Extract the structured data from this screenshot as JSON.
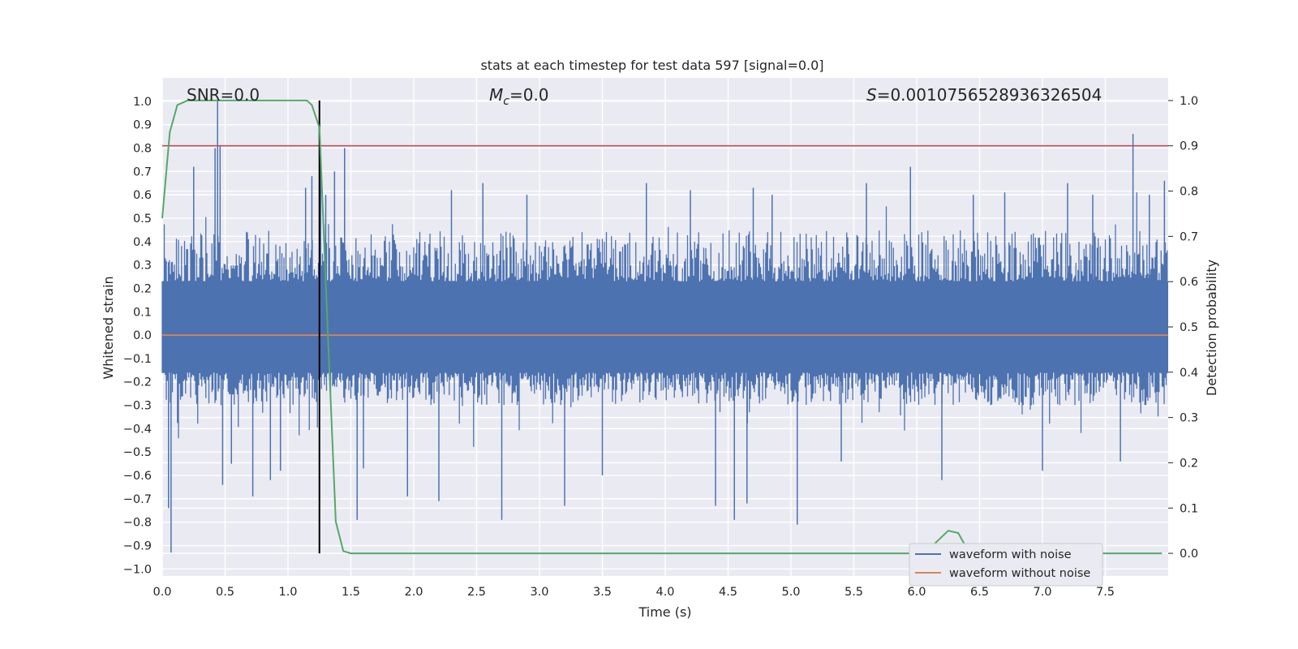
{
  "chart_data": {
    "type": "line",
    "title": "stats at each timestep for test data 597 [signal=0.0]",
    "xlabel": "Time (s)",
    "ylabel": "Whitened strain",
    "y2label": "Detection probability",
    "xlim": [
      0.0,
      8.0
    ],
    "ylim": [
      -1.03,
      1.1
    ],
    "y2lim": [
      -0.05,
      1.05
    ],
    "x_ticks": [
      "0.0",
      "0.5",
      "1.0",
      "1.5",
      "2.0",
      "2.5",
      "3.0",
      "3.5",
      "4.0",
      "4.5",
      "5.0",
      "5.5",
      "6.0",
      "6.5",
      "7.0",
      "7.5"
    ],
    "y_ticks": [
      "1.0",
      "0.9",
      "0.8",
      "0.7",
      "0.6",
      "0.5",
      "0.4",
      "0.3",
      "0.2",
      "0.1",
      "0.0",
      "−0.1",
      "−0.2",
      "−0.3",
      "−0.4",
      "−0.5",
      "−0.6",
      "−0.7",
      "−0.8",
      "−0.9",
      "−1.0"
    ],
    "y2_ticks": [
      "1.0",
      "0.9",
      "0.8",
      "0.7",
      "0.6",
      "0.5",
      "0.4",
      "0.3",
      "0.2",
      "0.1",
      "0.0"
    ],
    "grid": true,
    "legend_position": "lower-right",
    "annotations": {
      "snr": "SNR=0.0",
      "mc_symbol": "M",
      "mc_sub": "c",
      "mc_value": "=0.0",
      "s_symbol": "S",
      "s_value": "=0.0010756528936326504"
    },
    "threshold_y2": 0.9,
    "event_time": 1.25,
    "series": [
      {
        "name": "waveform with noise",
        "color": "#4c72b0",
        "core_band": [
          -0.16,
          0.23
        ],
        "typical_band": [
          -0.3,
          0.45
        ],
        "spikes": [
          [
            0.05,
            -0.74
          ],
          [
            0.07,
            -0.93
          ],
          [
            0.25,
            0.72
          ],
          [
            0.42,
            0.8
          ],
          [
            0.44,
            1.0
          ],
          [
            0.46,
            0.81
          ],
          [
            0.48,
            -0.64
          ],
          [
            0.55,
            -0.55
          ],
          [
            0.72,
            -0.69
          ],
          [
            0.86,
            -0.62
          ],
          [
            0.94,
            -0.58
          ],
          [
            1.14,
            0.63
          ],
          [
            1.19,
            0.68
          ],
          [
            1.26,
            0.8
          ],
          [
            1.3,
            0.6
          ],
          [
            1.37,
            0.7
          ],
          [
            1.45,
            0.8
          ],
          [
            1.55,
            -0.79
          ],
          [
            1.6,
            -0.57
          ],
          [
            1.95,
            -0.69
          ],
          [
            2.2,
            -0.71
          ],
          [
            2.3,
            0.62
          ],
          [
            2.55,
            0.65
          ],
          [
            2.7,
            -0.79
          ],
          [
            2.9,
            0.6
          ],
          [
            3.2,
            -0.73
          ],
          [
            3.5,
            -0.6
          ],
          [
            3.85,
            0.65
          ],
          [
            4.2,
            0.62
          ],
          [
            4.4,
            -0.73
          ],
          [
            4.55,
            -0.79
          ],
          [
            4.65,
            -0.72
          ],
          [
            4.7,
            0.63
          ],
          [
            4.85,
            0.6
          ],
          [
            5.05,
            -0.81
          ],
          [
            5.4,
            -0.54
          ],
          [
            5.6,
            0.65
          ],
          [
            5.95,
            0.72
          ],
          [
            6.2,
            -0.62
          ],
          [
            6.45,
            0.6
          ],
          [
            6.7,
            0.61
          ],
          [
            7.0,
            -0.58
          ],
          [
            7.2,
            0.65
          ],
          [
            7.4,
            0.6
          ],
          [
            7.62,
            -0.54
          ],
          [
            7.72,
            0.86
          ],
          [
            7.85,
            0.6
          ],
          [
            7.97,
            0.66
          ]
        ]
      },
      {
        "name": "waveform without noise",
        "color": "#dd8452",
        "y": 0.0
      },
      {
        "name": "detection probability",
        "color": "#55a868",
        "axis": "right",
        "points": [
          [
            0.0,
            0.74
          ],
          [
            0.06,
            0.93
          ],
          [
            0.12,
            0.99
          ],
          [
            0.2,
            1.0
          ],
          [
            0.4,
            1.0
          ],
          [
            0.8,
            1.0
          ],
          [
            1.05,
            1.0
          ],
          [
            1.15,
            1.0
          ],
          [
            1.19,
            0.99
          ],
          [
            1.25,
            0.94
          ],
          [
            1.31,
            0.53
          ],
          [
            1.38,
            0.07
          ],
          [
            1.44,
            0.005
          ],
          [
            1.5,
            0.0
          ],
          [
            2.0,
            0.0
          ],
          [
            3.0,
            0.0
          ],
          [
            4.0,
            0.0
          ],
          [
            5.0,
            0.0
          ],
          [
            6.0,
            0.0
          ],
          [
            6.1,
            0.01
          ],
          [
            6.25,
            0.05
          ],
          [
            6.33,
            0.045
          ],
          [
            6.4,
            0.01
          ],
          [
            6.5,
            0.0
          ],
          [
            7.5,
            0.0
          ],
          [
            7.95,
            0.0
          ]
        ]
      }
    ],
    "threshold_color": "#c44e52",
    "event_line_color": "#000000"
  }
}
